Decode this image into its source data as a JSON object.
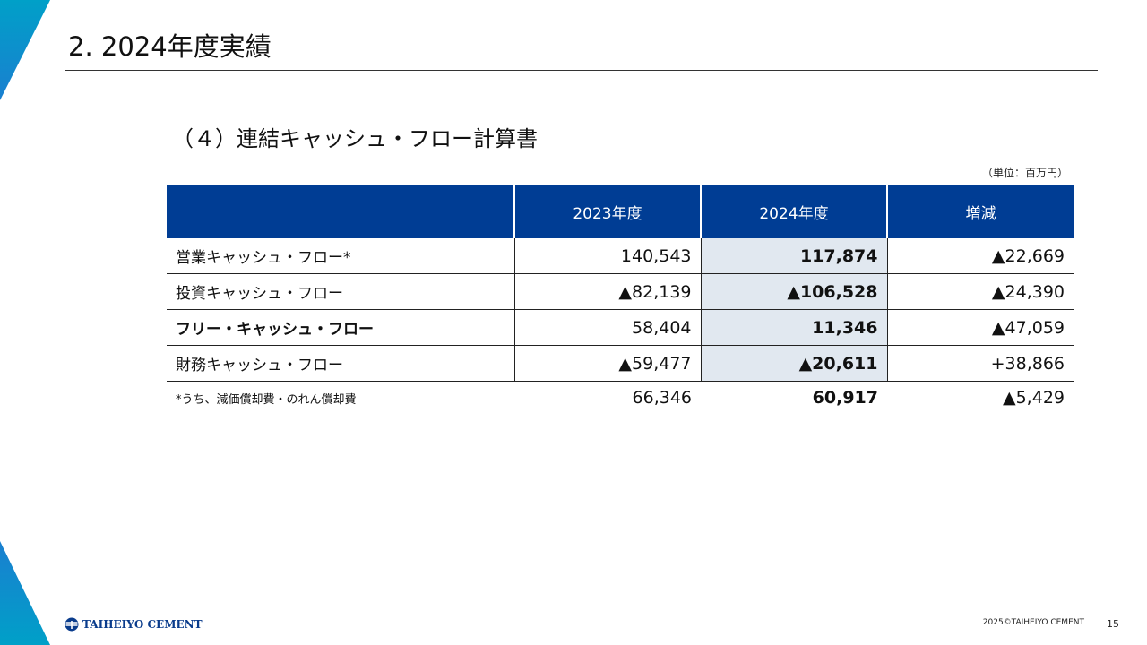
{
  "slide": {
    "title": "2.  2024年度実績",
    "subtitle": "（４）連結キャッシュ・フロー計算書",
    "unit": "（単位：百万円）"
  },
  "table": {
    "headers": [
      "",
      "2023年度",
      "2024年度",
      "増減"
    ],
    "rows": [
      {
        "label": "営業キャッシュ・フロー*",
        "y2023": "140,543",
        "y2024": "117,874",
        "change": "▲22,669"
      },
      {
        "label": "投資キャッシュ・フロー",
        "y2023": "▲82,139",
        "y2024": "▲106,528",
        "change": "▲24,390"
      },
      {
        "label": "フリー・キャッシュ・フロー",
        "y2023": "58,404",
        "y2024": "11,346",
        "change": "▲47,059"
      },
      {
        "label": "財務キャッシュ・フロー",
        "y2023": "▲59,477",
        "y2024": "▲20,611",
        "change": "+38,866"
      }
    ],
    "note": {
      "label": "*うち、減価償却費・のれん償却費",
      "y2023": "66,346",
      "y2024": "60,917",
      "change": "▲5,429"
    }
  },
  "footer": {
    "logo_text": "TAIHEIYO CEMENT",
    "copyright": "2025©TAIHEIYO CEMENT",
    "page_number": "15"
  },
  "colors": {
    "header_bg": "#003d94",
    "highlight_bg": "#e1e8f0",
    "accent_cyan": "#00a0c8",
    "accent_blue": "#1565c0"
  }
}
